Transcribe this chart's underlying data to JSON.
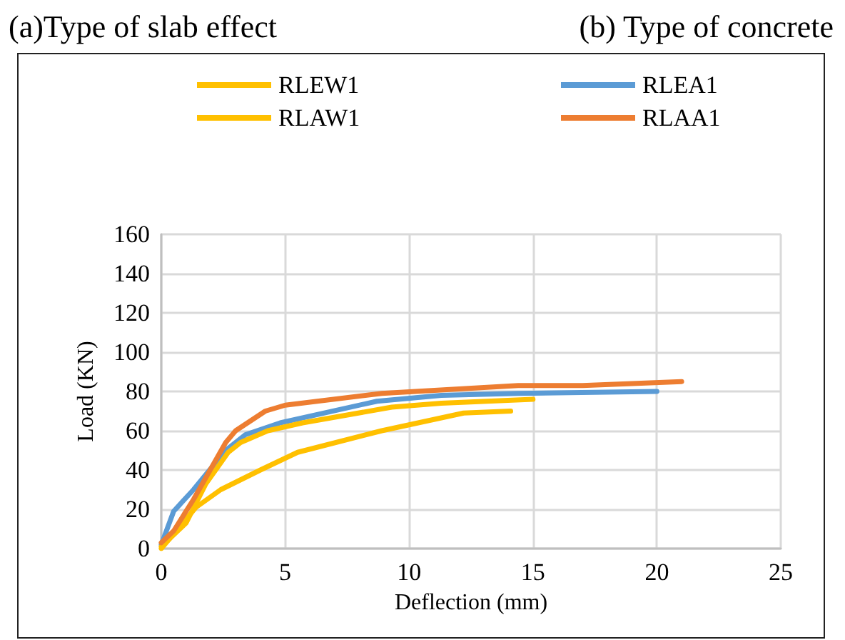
{
  "chart_data": {
    "type": "line",
    "annotations": [
      "(a)Type of slab effect",
      "(b) Type of concrete"
    ],
    "xlabel": "Deflection (mm)",
    "ylabel": "Load (KN)",
    "series": [
      {
        "name": "RLEW1",
        "color": "#ffc000",
        "x": [
          0,
          1.4,
          2.4,
          4,
          5.5,
          8.9,
          12.2,
          14.1
        ],
        "values": [
          0,
          21,
          30,
          40,
          49,
          60,
          69,
          70
        ]
      },
      {
        "name": "RLEA1",
        "color": "#5b9bd5",
        "x": [
          0,
          0.5,
          1.3,
          2.6,
          3.4,
          4.8,
          8.7,
          11.3,
          14.4,
          20
        ],
        "values": [
          2,
          19,
          30,
          50,
          58,
          64,
          75,
          78,
          79,
          80
        ]
      },
      {
        "name": "RLAW1",
        "color": "#ffc000",
        "x": [
          0,
          1,
          1.8,
          2.7,
          3.2,
          4.3,
          5.7,
          9.3,
          11.3,
          15
        ],
        "values": [
          1,
          13,
          33,
          49,
          54,
          60,
          64,
          72,
          74,
          76
        ]
      },
      {
        "name": "RLAA1",
        "color": "#ed7d31",
        "x": [
          0,
          0.5,
          1.3,
          2.6,
          3,
          4.2,
          5,
          8.9,
          14.4,
          17,
          21
        ],
        "values": [
          3,
          9,
          25,
          54,
          60,
          70,
          73,
          79,
          83,
          83,
          85
        ]
      }
    ],
    "xlim": [
      0,
      25
    ],
    "xticks": [
      0,
      5,
      10,
      15,
      20,
      25
    ],
    "ylim": [
      0,
      160
    ],
    "yticks": [
      0,
      20,
      40,
      60,
      80,
      100,
      120,
      140,
      160
    ],
    "grid": true,
    "legend": "top",
    "marker": "none",
    "line_style": "solid"
  }
}
